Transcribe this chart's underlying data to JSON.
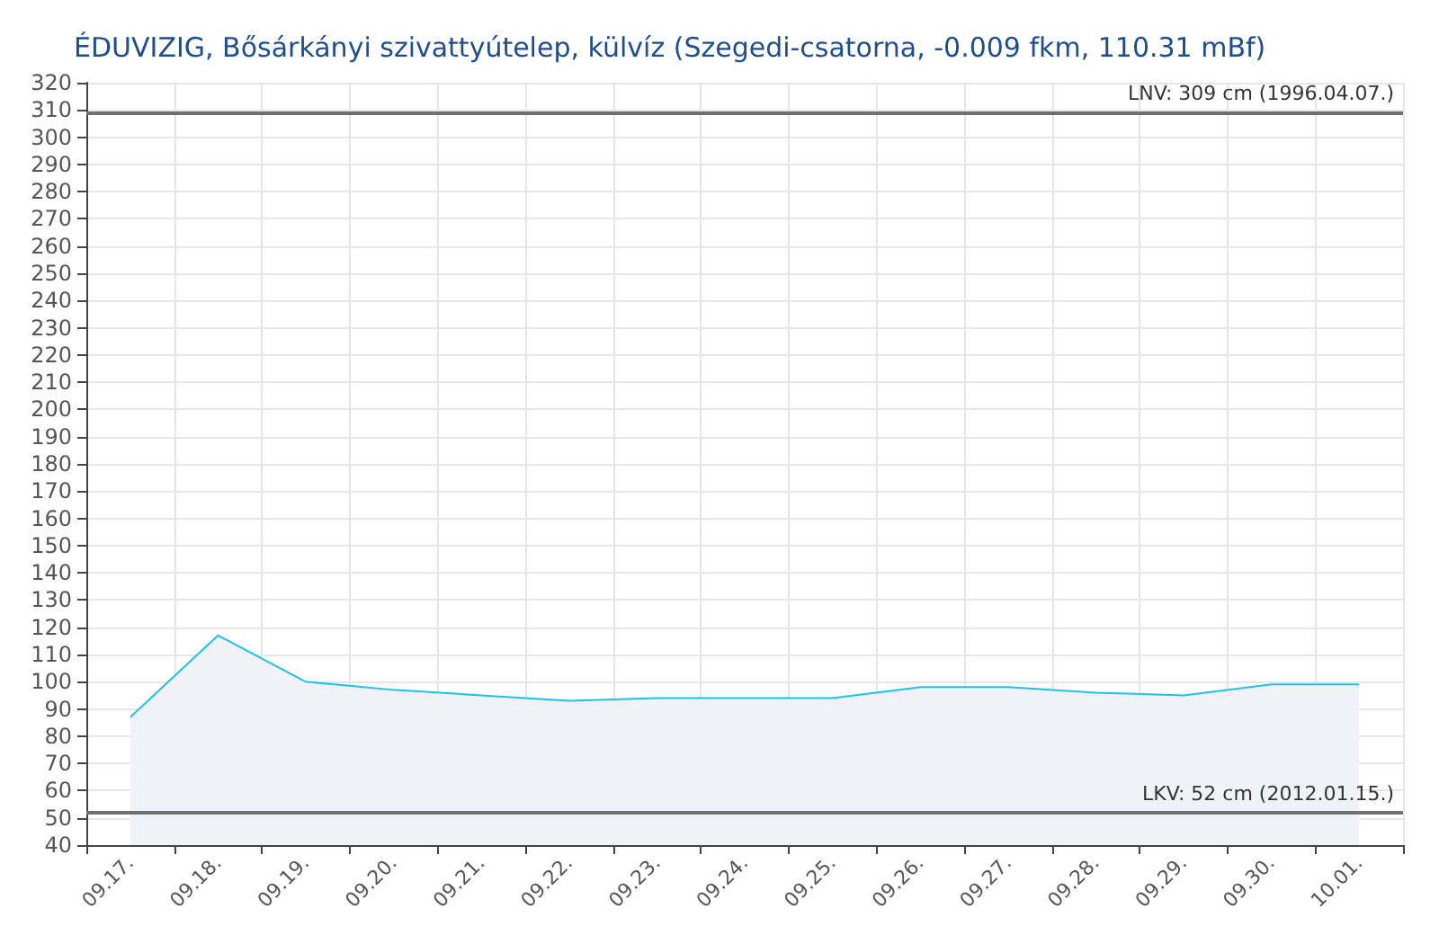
{
  "chart_data": {
    "type": "area",
    "title": "ÉDUVIZIG, Bősárkányi szivattyútelep, külvíz (Szegedi-csatorna, -0.009 fkm, 110.31 mBf)",
    "categories": [
      "09.17.",
      "09.18.",
      "09.19.",
      "09.20.",
      "09.21.",
      "09.22.",
      "09.23.",
      "09.24.",
      "09.25.",
      "09.26.",
      "09.27.",
      "09.28.",
      "09.29.",
      "09.30.",
      "10.01."
    ],
    "series": [
      {
        "color": "#1ec0ef",
        "values": [
          87,
          117,
          100,
          97,
          95,
          93,
          94,
          94,
          94,
          98,
          98,
          96,
          95,
          99,
          99
        ]
      }
    ],
    "ylim": [
      40,
      320
    ],
    "yticks": [
      40,
      50,
      60,
      70,
      80,
      90,
      100,
      110,
      120,
      130,
      140,
      150,
      160,
      170,
      180,
      190,
      200,
      210,
      220,
      230,
      240,
      250,
      260,
      270,
      280,
      290,
      300,
      310,
      320
    ],
    "grid": true,
    "marker": "none",
    "line_style": "solid",
    "ref_lines": [
      {
        "axis": "y",
        "value": 309,
        "label": "LNV: 309 cm (1996.04.07.)",
        "color": "#707070"
      },
      {
        "axis": "y",
        "value": 52,
        "label": "LKV: 52 cm (2012.01.15.)",
        "color": "#707070"
      }
    ]
  }
}
